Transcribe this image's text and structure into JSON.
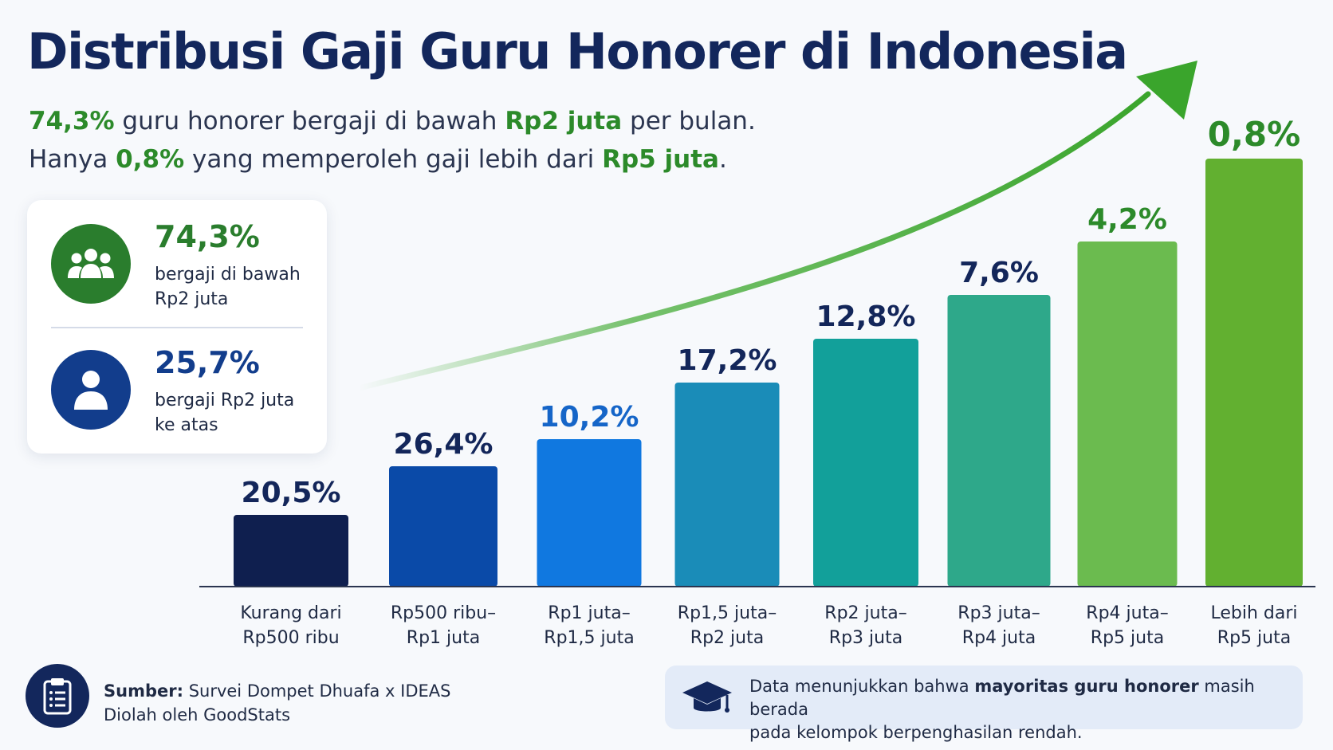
{
  "title": "Distribusi Gaji Guru Honorer di Indonesia",
  "subtitle": {
    "line1": {
      "hl1": "74,3%",
      "t1": " guru honorer bergaji di bawah ",
      "hl2": "Rp2 juta",
      "t2": " per bulan."
    },
    "line2": {
      "t0": "Hanya ",
      "hl1": "0,8%",
      "t1": " yang memperoleh gaji lebih dari ",
      "hl2": "Rp5 juta",
      "t2": "."
    }
  },
  "stat_card": {
    "items": [
      {
        "value": "74,3%",
        "desc_line1": "bergaji di bawah",
        "desc_line2": "Rp2 juta",
        "icon": "group-icon",
        "color": "#2a7d2d"
      },
      {
        "value": "25,7%",
        "desc_line1": "bergaji Rp2 juta",
        "desc_line2": "ke atas",
        "icon": "person-icon",
        "color": "#123d8c"
      }
    ]
  },
  "chart_data": {
    "type": "bar",
    "categories": [
      [
        "Kurang dari",
        "Rp500 ribu"
      ],
      [
        "Rp500 ribu–",
        "Rp1 juta"
      ],
      [
        "Rp1 juta–",
        "Rp1,5 juta"
      ],
      [
        "Rp1,5 juta–",
        "Rp2 juta"
      ],
      [
        "Rp2 juta–",
        "Rp3 juta"
      ],
      [
        "Rp3 juta–",
        "Rp4 juta"
      ],
      [
        "Rp4 juta–",
        "Rp5 juta"
      ],
      [
        "Lebih dari",
        "Rp5 juta"
      ]
    ],
    "values": [
      20.5,
      26.4,
      10.2,
      17.2,
      12.8,
      7.6,
      4.2,
      0.8
    ],
    "value_labels": [
      "20,5%",
      "26,4%",
      "10,2%",
      "17,2%",
      "12,8%",
      "7,6%",
      "4,2%",
      "0,8%"
    ],
    "bar_colors": [
      "#0f1f4f",
      "#0a4aa8",
      "#1078e0",
      "#1a8cb8",
      "#12a09a",
      "#2ea88a",
      "#6bbb4f",
      "#62b030"
    ],
    "label_colors": [
      "#13265a",
      "#13265a",
      "#1565c8",
      "#13265a",
      "#13265a",
      "#13265a",
      "#2c8a2a",
      "#2c8a2a"
    ],
    "trend_arrow": true,
    "legend": "none",
    "grid": false
  },
  "footer": {
    "source_label": "Sumber:",
    "source_text": "Survei Dompet Dhuafa x IDEAS",
    "processed_by": "Diolah oleh GoodStats",
    "note_pre": "Data menunjukkan bahwa ",
    "note_bold": "mayoritas guru honorer",
    "note_mid": " masih berada",
    "note_line2": "pada kelompok berpenghasilan rendah.",
    "icons": {
      "source": "clipboard-icon",
      "note": "graduation-cap-icon"
    }
  }
}
